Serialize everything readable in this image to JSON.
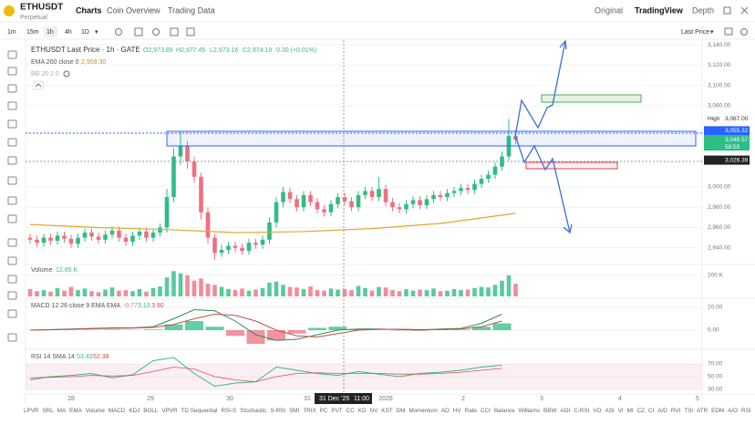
{
  "header": {
    "symbol": "ETHUSDT",
    "contract": "Perpetual",
    "tabs": [
      "Charts",
      "Coin Overview",
      "Trading Data"
    ],
    "views": [
      "Original",
      "TradingView",
      "Depth"
    ]
  },
  "toolbar": {
    "intervals": [
      "1m",
      "15m",
      "1h",
      "4h",
      "1D"
    ],
    "price_source": "Last Price"
  },
  "chart_data": {
    "type": "candlestick",
    "title": "ETHUSDT Last Price · 1h · GATE",
    "ohlc_label": [
      "O2,973.89",
      "H2,977.45",
      "L2,973.16",
      "C2,974.19",
      "0.30 (+0.01%)"
    ],
    "ema_label": "EMA 200 close 0",
    "ema_value": "2,959.30",
    "bb_label": "BB 20 2 0",
    "up_color": "#2ebd85",
    "down_color": "#ef6f7f",
    "open": [
      2950,
      2948,
      2945,
      2950,
      2947,
      2952,
      2949,
      2944,
      2950,
      2955,
      2951,
      2948,
      2953,
      2957,
      2950,
      2946,
      2952,
      2956,
      2950,
      2955,
      2960,
      2990,
      3030,
      3040,
      3025,
      3010,
      2975,
      2950,
      2935,
      2938,
      2942,
      2940,
      2937,
      2945,
      2943,
      2948,
      2965,
      2985,
      2995,
      2988,
      2980,
      2992,
      2985,
      2978,
      2975,
      2983,
      2990,
      2986,
      2980,
      2992,
      2996,
      2990,
      2998,
      2985,
      2980,
      2978,
      2983,
      2987,
      2982,
      2988,
      2992,
      2990,
      2994,
      2996,
      2999,
      2997,
      3003,
      3008,
      3012,
      3020,
      3030,
      3050
    ],
    "high": [
      2954,
      2952,
      2954,
      2954,
      2956,
      2956,
      2953,
      2954,
      2959,
      2959,
      2955,
      2957,
      2961,
      2961,
      2954,
      2956,
      2960,
      2960,
      2959,
      2964,
      2998,
      3038,
      3055,
      3045,
      3030,
      3014,
      2980,
      2954,
      2943,
      2946,
      2946,
      2944,
      2949,
      2949,
      2952,
      2970,
      2990,
      3000,
      2999,
      2992,
      2996,
      2996,
      2989,
      2982,
      2987,
      2994,
      2994,
      2990,
      2996,
      3000,
      3000,
      3010,
      3002,
      2989,
      2984,
      2987,
      2991,
      2991,
      2992,
      2996,
      2996,
      2998,
      3000,
      3003,
      3003,
      3007,
      3012,
      3016,
      3024,
      3035,
      3067,
      3056
    ],
    "low": [
      2944,
      2941,
      2941,
      2943,
      2943,
      2945,
      2940,
      2940,
      2946,
      2947,
      2944,
      2944,
      2949,
      2946,
      2942,
      2942,
      2948,
      2946,
      2946,
      2951,
      2955,
      2985,
      3022,
      3018,
      3004,
      2968,
      2944,
      2928,
      2931,
      2934,
      2936,
      2933,
      2933,
      2939,
      2939,
      2944,
      2960,
      2980,
      2984,
      2976,
      2976,
      2981,
      2974,
      2971,
      2971,
      2979,
      2982,
      2976,
      2976,
      2988,
      2986,
      2986,
      2981,
      2976,
      2974,
      2974,
      2979,
      2978,
      2978,
      2984,
      2986,
      2986,
      2990,
      2992,
      2993,
      2993,
      2999,
      3004,
      3008,
      3016,
      3026,
      3042
    ],
    "close": [
      2948,
      2945,
      2950,
      2947,
      2952,
      2949,
      2944,
      2950,
      2955,
      2951,
      2948,
      2953,
      2957,
      2950,
      2946,
      2952,
      2956,
      2950,
      2955,
      2960,
      2990,
      3030,
      3040,
      3025,
      3010,
      2975,
      2950,
      2935,
      2938,
      2942,
      2940,
      2937,
      2945,
      2943,
      2948,
      2965,
      2985,
      2995,
      2988,
      2980,
      2992,
      2985,
      2978,
      2975,
      2983,
      2990,
      2986,
      2980,
      2992,
      2996,
      2990,
      2998,
      2985,
      2980,
      2978,
      2983,
      2987,
      2982,
      2988,
      2992,
      2990,
      2994,
      2996,
      2999,
      2997,
      3003,
      3008,
      3012,
      3020,
      3030,
      3050,
      3046.57
    ],
    "ylim": [
      2920,
      3150
    ],
    "yticks": [
      {
        "value": 3140,
        "label": "3,140.00"
      },
      {
        "value": 3120,
        "label": "3,120.00"
      },
      {
        "value": 3100,
        "label": "3,100.00"
      },
      {
        "value": 3080,
        "label": "3,080.00"
      },
      {
        "value": 3000,
        "label": "3,000.00"
      },
      {
        "value": 2980,
        "label": "2,980.00"
      },
      {
        "value": 2960,
        "label": "2,960.00"
      },
      {
        "value": 2940,
        "label": "2,940.00"
      }
    ],
    "ema": {
      "color": "#e0a72a",
      "x": [
        0,
        10,
        20,
        30,
        40,
        50,
        60,
        71
      ],
      "values": [
        2963,
        2960,
        2958,
        2955,
        2956,
        2959,
        2964,
        2974
      ]
    },
    "price_tags": [
      {
        "label": "High",
        "text": "3,067.00",
        "value": 3067
      },
      {
        "text": "3,055.32",
        "value": 3055.32
      },
      {
        "text": "3,046.57",
        "value": 3046.57,
        "countdown": "58:59"
      },
      {
        "text": "3,026.39",
        "value": 3026.39
      }
    ],
    "x_labels": [
      "28",
      "29",
      "30",
      "31",
      "2026",
      "2",
      "3",
      "4",
      "5"
    ],
    "crosshair_label": [
      "31 Dec '25",
      "11:00"
    ],
    "volume": {
      "label": "Volume",
      "value": "12.85 K",
      "ylim": [
        0,
        260
      ],
      "yticks": [
        {
          "value": 200,
          "label": "200 K"
        }
      ],
      "values": [
        70,
        50,
        60,
        45,
        80,
        55,
        90,
        60,
        75,
        50,
        40,
        65,
        85,
        55,
        60,
        50,
        70,
        45,
        80,
        95,
        180,
        240,
        220,
        200,
        150,
        170,
        120,
        110,
        90,
        70,
        60,
        75,
        55,
        65,
        80,
        130,
        140,
        110,
        90,
        85,
        70,
        95,
        60,
        55,
        75,
        65,
        70,
        60,
        100,
        80,
        55,
        90,
        85,
        60,
        50,
        70,
        55,
        65,
        60,
        75,
        50,
        55,
        70,
        60,
        65,
        80,
        90,
        85,
        110,
        150,
        200,
        120
      ]
    },
    "macd": {
      "label": "MACD 12 26 close 9 EMA EMA",
      "readings": [
        "-0.77",
        "3.13",
        "3.90"
      ],
      "ylim": [
        -14,
        24
      ],
      "yticks": [
        {
          "value": 20,
          "label": "20.00"
        },
        {
          "value": 0,
          "label": "0.00"
        }
      ],
      "x": [
        0,
        3,
        6,
        9,
        12,
        15,
        18,
        21,
        24,
        27,
        30,
        33,
        36,
        39,
        42,
        45,
        48,
        51,
        54,
        57,
        60,
        63,
        66,
        69
      ],
      "macd": [
        0,
        0.5,
        1,
        1.5,
        2,
        2,
        3,
        10,
        18,
        17,
        8,
        -4,
        -9,
        -8,
        -4,
        0,
        1,
        1,
        0.5,
        0,
        1,
        1.5,
        6,
        14
      ],
      "signal": [
        0,
        0.3,
        0.8,
        1.2,
        1.6,
        1.8,
        2.4,
        5,
        10,
        14,
        13,
        8,
        0,
        -5,
        -6,
        -3,
        0,
        0.8,
        0.8,
        0.5,
        0.6,
        1,
        3,
        8
      ],
      "histogram": [
        0,
        0.2,
        0.2,
        0.3,
        0.4,
        0.2,
        0.6,
        5,
        8,
        3,
        -5,
        -12,
        -9,
        -3,
        2,
        3,
        1,
        0.2,
        -0.3,
        -0.5,
        0.4,
        0.5,
        3,
        6
      ]
    },
    "rsi": {
      "label": "RSI 14 SMA 14",
      "readings": [
        "53.43",
        "52.38"
      ],
      "ylim": [
        25,
        75
      ],
      "yticks": [
        {
          "value": 70,
          "label": "70.00"
        },
        {
          "value": 50,
          "label": "50.00"
        },
        {
          "value": 30,
          "label": "30.00"
        }
      ],
      "x": [
        0,
        3,
        6,
        9,
        12,
        15,
        18,
        21,
        24,
        27,
        30,
        33,
        36,
        39,
        42,
        45,
        48,
        51,
        54,
        57,
        60,
        63,
        66,
        69
      ],
      "rsi": [
        45,
        50,
        52,
        55,
        48,
        53,
        75,
        80,
        55,
        35,
        40,
        42,
        65,
        60,
        55,
        52,
        58,
        54,
        50,
        55,
        57,
        60,
        65,
        68
      ],
      "sma": [
        48,
        49,
        50,
        52,
        51,
        52,
        58,
        65,
        62,
        50,
        45,
        42,
        50,
        55,
        56,
        55,
        55,
        55,
        54,
        54,
        55,
        57,
        60,
        63
      ]
    }
  },
  "indicators": [
    "LPVR",
    "SRL",
    "MA",
    "EMA",
    "Volume",
    "MACD",
    "KDJ",
    "BOLL",
    "VPVR",
    "TD Sequential",
    "RSI-S",
    "Stochastic",
    "S-RSI",
    "SMI",
    "TRIX",
    "PC",
    "PVT",
    "CC",
    "KD",
    "NV",
    "KST",
    "DM",
    "Momentum",
    "AO",
    "HV",
    "Rate",
    "CCI",
    "Balance",
    "Williams",
    "BBW",
    "AOI",
    "C-RSI",
    "VO",
    "ASI",
    "VI",
    "MI",
    "CZ",
    "CI",
    "A/D",
    "RVI",
    "TSI",
    "ATR",
    "EDM",
    "A/O",
    "RSI"
  ]
}
